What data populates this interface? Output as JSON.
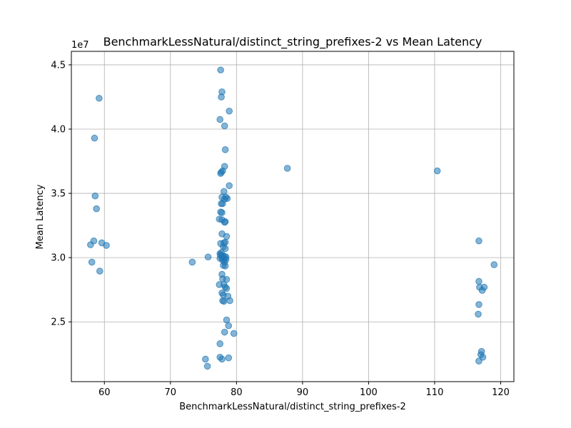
{
  "chart_data": {
    "type": "scatter",
    "title": "BenchmarkLessNatural/distinct_string_prefixes-2 vs Mean Latency",
    "xlabel": "BenchmarkLessNatural/distinct_string_prefixes-2",
    "ylabel": "Mean Latency",
    "y_offset_label": "1e7",
    "xlim": [
      55,
      122
    ],
    "ylim": [
      20350000,
      46050000
    ],
    "xticks": [
      60,
      70,
      80,
      90,
      100,
      110,
      120
    ],
    "yticks": [
      25000000,
      30000000,
      35000000,
      40000000,
      45000000
    ],
    "xtick_labels": [
      "60",
      "70",
      "80",
      "90",
      "100",
      "110",
      "120"
    ],
    "ytick_labels": [
      "2.5",
      "3.0",
      "3.5",
      "4.0",
      "4.5"
    ],
    "grid": true,
    "marker_color": "#1f77b4",
    "marker_alpha": 0.55,
    "points": [
      {
        "x": 59.2,
        "y": 42400000
      },
      {
        "x": 58.5,
        "y": 39300000
      },
      {
        "x": 58.6,
        "y": 34800000
      },
      {
        "x": 58.8,
        "y": 33800000
      },
      {
        "x": 58.4,
        "y": 31300000
      },
      {
        "x": 57.9,
        "y": 31000000
      },
      {
        "x": 59.6,
        "y": 31150000
      },
      {
        "x": 60.3,
        "y": 30950000
      },
      {
        "x": 58.1,
        "y": 29650000
      },
      {
        "x": 59.3,
        "y": 28950000
      },
      {
        "x": 73.3,
        "y": 29650000
      },
      {
        "x": 75.7,
        "y": 30050000
      },
      {
        "x": 75.3,
        "y": 22100000
      },
      {
        "x": 75.6,
        "y": 21550000
      },
      {
        "x": 77.6,
        "y": 44600000
      },
      {
        "x": 77.8,
        "y": 42900000
      },
      {
        "x": 77.7,
        "y": 42500000
      },
      {
        "x": 78.9,
        "y": 41400000
      },
      {
        "x": 77.5,
        "y": 40750000
      },
      {
        "x": 78.2,
        "y": 40250000
      },
      {
        "x": 78.3,
        "y": 38400000
      },
      {
        "x": 78.2,
        "y": 37100000
      },
      {
        "x": 77.9,
        "y": 36750000
      },
      {
        "x": 77.6,
        "y": 36550000
      },
      {
        "x": 77.7,
        "y": 36650000
      },
      {
        "x": 78.9,
        "y": 35600000
      },
      {
        "x": 78.1,
        "y": 35150000
      },
      {
        "x": 77.8,
        "y": 34700000
      },
      {
        "x": 78.4,
        "y": 34700000
      },
      {
        "x": 78.6,
        "y": 34600000
      },
      {
        "x": 78.2,
        "y": 34550000
      },
      {
        "x": 77.7,
        "y": 34200000
      },
      {
        "x": 77.9,
        "y": 34200000
      },
      {
        "x": 77.6,
        "y": 33550000
      },
      {
        "x": 77.8,
        "y": 33500000
      },
      {
        "x": 77.4,
        "y": 33000000
      },
      {
        "x": 77.8,
        "y": 32950000
      },
      {
        "x": 78.2,
        "y": 32750000
      },
      {
        "x": 78.3,
        "y": 32800000
      },
      {
        "x": 77.8,
        "y": 31850000
      },
      {
        "x": 78.5,
        "y": 31650000
      },
      {
        "x": 77.6,
        "y": 31100000
      },
      {
        "x": 78.1,
        "y": 31150000
      },
      {
        "x": 78.3,
        "y": 31200000
      },
      {
        "x": 78.0,
        "y": 30850000
      },
      {
        "x": 78.3,
        "y": 30700000
      },
      {
        "x": 77.7,
        "y": 30400000
      },
      {
        "x": 77.5,
        "y": 30300000
      },
      {
        "x": 77.6,
        "y": 30200000
      },
      {
        "x": 77.9,
        "y": 30150000
      },
      {
        "x": 78.2,
        "y": 30100000
      },
      {
        "x": 78.4,
        "y": 30050000
      },
      {
        "x": 77.8,
        "y": 30000000
      },
      {
        "x": 77.5,
        "y": 29950000
      },
      {
        "x": 78.1,
        "y": 29900000
      },
      {
        "x": 78.4,
        "y": 29850000
      },
      {
        "x": 77.9,
        "y": 29800000
      },
      {
        "x": 78.2,
        "y": 29650000
      },
      {
        "x": 78.0,
        "y": 29400000
      },
      {
        "x": 78.3,
        "y": 29350000
      },
      {
        "x": 77.8,
        "y": 28700000
      },
      {
        "x": 78.5,
        "y": 28300000
      },
      {
        "x": 77.9,
        "y": 28350000
      },
      {
        "x": 77.4,
        "y": 27900000
      },
      {
        "x": 78.1,
        "y": 27900000
      },
      {
        "x": 78.3,
        "y": 27700000
      },
      {
        "x": 78.5,
        "y": 27600000
      },
      {
        "x": 77.8,
        "y": 27250000
      },
      {
        "x": 78.0,
        "y": 27100000
      },
      {
        "x": 78.7,
        "y": 27000000
      },
      {
        "x": 77.9,
        "y": 26650000
      },
      {
        "x": 78.1,
        "y": 26600000
      },
      {
        "x": 79.0,
        "y": 26650000
      },
      {
        "x": 78.5,
        "y": 25150000
      },
      {
        "x": 78.8,
        "y": 24700000
      },
      {
        "x": 78.2,
        "y": 24200000
      },
      {
        "x": 79.6,
        "y": 24100000
      },
      {
        "x": 77.5,
        "y": 23300000
      },
      {
        "x": 77.5,
        "y": 22250000
      },
      {
        "x": 77.8,
        "y": 22100000
      },
      {
        "x": 78.8,
        "y": 22200000
      },
      {
        "x": 87.7,
        "y": 36950000
      },
      {
        "x": 110.4,
        "y": 36750000
      },
      {
        "x": 116.7,
        "y": 31300000
      },
      {
        "x": 119.0,
        "y": 29450000
      },
      {
        "x": 116.7,
        "y": 28150000
      },
      {
        "x": 116.8,
        "y": 27700000
      },
      {
        "x": 117.5,
        "y": 27700000
      },
      {
        "x": 117.2,
        "y": 27450000
      },
      {
        "x": 116.7,
        "y": 26350000
      },
      {
        "x": 116.6,
        "y": 25600000
      },
      {
        "x": 117.1,
        "y": 22700000
      },
      {
        "x": 117.0,
        "y": 22450000
      },
      {
        "x": 117.3,
        "y": 22250000
      },
      {
        "x": 116.7,
        "y": 21950000
      }
    ]
  }
}
